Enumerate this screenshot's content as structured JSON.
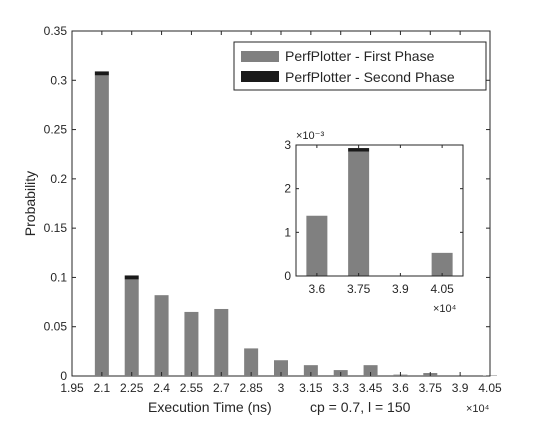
{
  "chart_data": [
    {
      "id": "main",
      "type": "bar",
      "stacked": true,
      "xlabel": "Execution Time (ns)",
      "xlabel_extra": "cp = 0.7, l = 150",
      "ylabel": "Probability",
      "x_multiplier": "×10⁴",
      "x_ticks": [
        "1.95",
        "2.1",
        "2.25",
        "2.4",
        "2.55",
        "2.7",
        "2.85",
        "3",
        "3.15",
        "3.3",
        "3.45",
        "3.6",
        "3.75",
        "3.9",
        "4.05"
      ],
      "y_ticks": [
        "0",
        "0.05",
        "0.1",
        "0.15",
        "0.2",
        "0.25",
        "0.3",
        "0.35"
      ],
      "xlim": [
        1.95,
        4.05
      ],
      "ylim": [
        0,
        0.35
      ],
      "legend_position": "top-right",
      "x": [
        2.1,
        2.25,
        2.4,
        2.55,
        2.7,
        2.85,
        3.0,
        3.15,
        3.3,
        3.45,
        3.6,
        3.75,
        3.9,
        4.05
      ],
      "series": [
        {
          "name": "PerfPlotter - First Phase",
          "color": "#808080",
          "values": [
            0.305,
            0.098,
            0.082,
            0.065,
            0.068,
            0.028,
            0.016,
            0.011,
            0.006,
            0.011,
            0.0014,
            0.0029,
            0.0,
            0.0005
          ]
        },
        {
          "name": "PerfPlotter - Second Phase",
          "color": "#1a1a1a",
          "values": [
            0.004,
            0.004,
            0.0,
            0.0,
            0.0,
            0.0,
            0.0,
            0.0,
            0.0,
            0.0,
            0.0,
            0.0001,
            0.0,
            0.0
          ]
        }
      ]
    },
    {
      "id": "inset",
      "type": "bar",
      "stacked": true,
      "y_multiplier": "×10⁻³",
      "x_multiplier": "×10⁴",
      "x_ticks": [
        "3.6",
        "3.75",
        "3.9",
        "4.05"
      ],
      "y_ticks": [
        "0",
        "1",
        "2",
        "3"
      ],
      "ylim": [
        0,
        3
      ],
      "x": [
        3.6,
        3.75,
        3.9,
        4.05
      ],
      "series": [
        {
          "name": "PerfPlotter - First Phase",
          "color": "#808080",
          "values": [
            1.38,
            2.85,
            0.0,
            0.53
          ]
        },
        {
          "name": "PerfPlotter - Second Phase",
          "color": "#1a1a1a",
          "values": [
            0.0,
            0.08,
            0.0,
            0.0
          ]
        }
      ]
    }
  ]
}
